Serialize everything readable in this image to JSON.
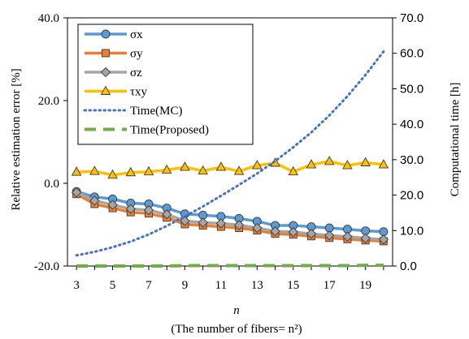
{
  "chart_data": {
    "type": "line",
    "x": [
      3,
      4,
      5,
      6,
      7,
      8,
      9,
      10,
      11,
      12,
      13,
      14,
      15,
      16,
      17,
      18,
      19,
      20
    ],
    "x_ticks": [
      3,
      5,
      7,
      9,
      11,
      13,
      15,
      17,
      19
    ],
    "xlabel": "n",
    "xlabel_sub": "(The number of fibers= n²)",
    "ylabel_left": "Relative estimation error [%]",
    "ylabel_right": "Computational time [h]",
    "ylim_left": [
      -20,
      40
    ],
    "ylim_right": [
      0,
      70
    ],
    "y_ticks_left": [
      "-20.0",
      "0.0",
      "20.0",
      "40.0"
    ],
    "y_ticks_right": [
      "0.0",
      "10.0",
      "20.0",
      "30.0",
      "40.0",
      "50.0",
      "60.0",
      "70.0"
    ],
    "legend_position": "top-left",
    "series": [
      {
        "name": "σx",
        "axis": "left",
        "color": "#5B9BD5",
        "marker": "circle",
        "line": "solid",
        "values": [
          -2.0,
          -3.3,
          -3.8,
          -4.8,
          -5.0,
          -6.0,
          -7.4,
          -7.7,
          -8.0,
          -8.5,
          -9.2,
          -10.2,
          -10.2,
          -10.5,
          -10.8,
          -11.1,
          -11.5,
          -11.7
        ]
      },
      {
        "name": "σy",
        "axis": "left",
        "color": "#ED7D31",
        "marker": "square",
        "line": "solid",
        "values": [
          -2.6,
          -5.0,
          -6.0,
          -7.0,
          -7.3,
          -8.3,
          -9.9,
          -10.2,
          -10.5,
          -10.8,
          -11.4,
          -12.2,
          -12.4,
          -12.8,
          -13.2,
          -13.5,
          -13.8,
          -14.0
        ]
      },
      {
        "name": "σz",
        "axis": "left",
        "color": "#A5A5A5",
        "marker": "diamond",
        "line": "solid",
        "values": [
          -2.2,
          -4.2,
          -5.2,
          -6.2,
          -6.5,
          -7.5,
          -9.1,
          -9.5,
          -9.7,
          -10.1,
          -10.8,
          -11.6,
          -11.8,
          -12.2,
          -12.6,
          -12.9,
          -13.3,
          -13.6
        ]
      },
      {
        "name": "τxy",
        "axis": "left",
        "color": "#FFC000",
        "marker": "triangle",
        "line": "solid",
        "values": [
          2.7,
          2.9,
          2.0,
          2.6,
          2.8,
          3.2,
          3.9,
          3.0,
          3.9,
          2.9,
          4.3,
          4.9,
          2.8,
          4.5,
          5.3,
          4.3,
          5.0,
          4.5
        ]
      },
      {
        "name": "Time(MC)",
        "axis": "right",
        "color": "#4472C4",
        "marker": "none",
        "line": "dotted",
        "values": [
          3.0,
          4.0,
          5.3,
          6.9,
          8.9,
          11.3,
          14.0,
          16.8,
          19.8,
          22.9,
          26.1,
          29.6,
          33.5,
          37.7,
          42.5,
          47.9,
          53.9,
          60.5
        ]
      },
      {
        "name": "Time(Proposed)",
        "axis": "right",
        "color": "#70AD47",
        "marker": "none",
        "line": "dashed",
        "values": [
          0.0,
          0.0,
          0.0,
          0.0,
          0.0,
          0.0,
          0.1,
          0.1,
          0.1,
          0.1,
          0.1,
          0.1,
          0.1,
          0.1,
          0.1,
          0.1,
          0.2,
          0.2
        ]
      }
    ]
  }
}
